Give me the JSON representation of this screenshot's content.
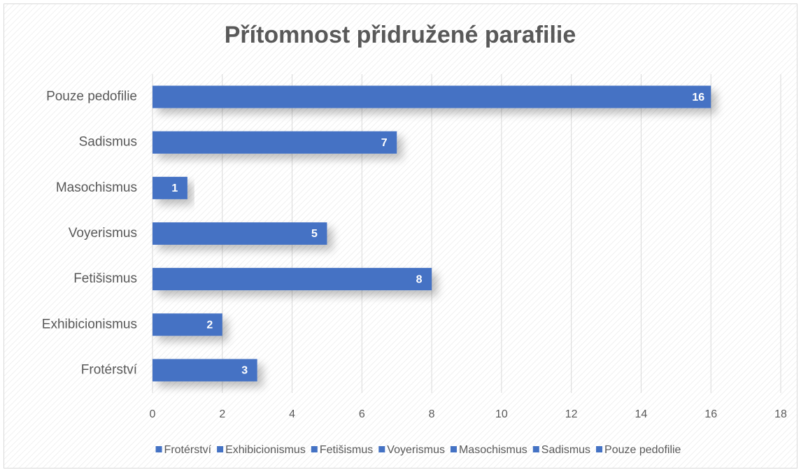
{
  "chart_data": {
    "type": "bar",
    "horizontal": true,
    "title": "Přítomnost přidružené parafilie",
    "categories": [
      "Frotérství",
      "Exhibicionismus",
      "Fetišismus",
      "Voyerismus",
      "Masochismus",
      "Sadismus",
      "Pouze pedofilie"
    ],
    "values": [
      3,
      2,
      8,
      5,
      1,
      7,
      16
    ],
    "color": "#4472c4",
    "xlim": [
      0,
      18
    ],
    "xticks": [
      0,
      2,
      4,
      6,
      8,
      10,
      12,
      14,
      16,
      18
    ],
    "grid": true,
    "legend": "bottom"
  }
}
